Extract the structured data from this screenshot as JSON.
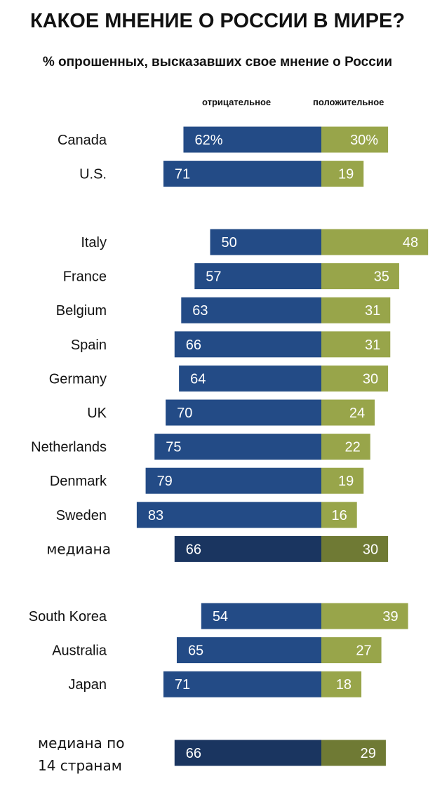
{
  "title": "КАКОЕ МНЕНИЕ О РОССИИ В МИРЕ?",
  "subtitle": "% опрошенных, высказавших свое мнение о России",
  "legend": {
    "negative": "отрицательное",
    "positive": "положительное"
  },
  "colors": {
    "negative": "#234b86",
    "positive": "#98a54a",
    "negative_median": "#1a3560",
    "positive_median": "#6f7a34"
  },
  "chart_data": {
    "type": "bar",
    "orientation": "horizontal-diverging",
    "groups": [
      {
        "rows": [
          {
            "category": "Canada",
            "negative": 62,
            "positive": 30,
            "negative_label": "62%",
            "positive_label": "30%"
          },
          {
            "category": "U.S.",
            "negative": 71,
            "positive": 19,
            "negative_label": "71",
            "positive_label": "19"
          }
        ]
      },
      {
        "rows": [
          {
            "category": "Italy",
            "negative": 50,
            "positive": 48,
            "negative_label": "50",
            "positive_label": "48"
          },
          {
            "category": "France",
            "negative": 57,
            "positive": 35,
            "negative_label": "57",
            "positive_label": "35"
          },
          {
            "category": "Belgium",
            "negative": 63,
            "positive": 31,
            "negative_label": "63",
            "positive_label": "31"
          },
          {
            "category": "Spain",
            "negative": 66,
            "positive": 31,
            "negative_label": "66",
            "positive_label": "31"
          },
          {
            "category": "Germany",
            "negative": 64,
            "positive": 30,
            "negative_label": "64",
            "positive_label": "30"
          },
          {
            "category": "UK",
            "negative": 70,
            "positive": 24,
            "negative_label": "70",
            "positive_label": "24"
          },
          {
            "category": "Netherlands",
            "negative": 75,
            "positive": 22,
            "negative_label": "75",
            "positive_label": "22"
          },
          {
            "category": "Denmark",
            "negative": 79,
            "positive": 19,
            "negative_label": "79",
            "positive_label": "19"
          },
          {
            "category": "Sweden",
            "negative": 83,
            "positive": 16,
            "negative_label": "83",
            "positive_label": "16"
          },
          {
            "category": "медиана",
            "negative": 66,
            "positive": 30,
            "negative_label": "66",
            "positive_label": "30",
            "median": true
          }
        ]
      },
      {
        "rows": [
          {
            "category": "South Korea",
            "negative": 54,
            "positive": 39,
            "negative_label": "54",
            "positive_label": "39"
          },
          {
            "category": "Australia",
            "negative": 65,
            "positive": 27,
            "negative_label": "65",
            "positive_label": "27"
          },
          {
            "category": "Japan",
            "negative": 71,
            "positive": 18,
            "negative_label": "71",
            "positive_label": "18"
          }
        ]
      },
      {
        "rows": [
          {
            "category": "медиана по 14 странам",
            "category_lines": [
              "медиана по",
              "14 странам"
            ],
            "negative": 66,
            "positive": 29,
            "negative_label": "66",
            "positive_label": "29",
            "median": true
          }
        ]
      }
    ]
  }
}
